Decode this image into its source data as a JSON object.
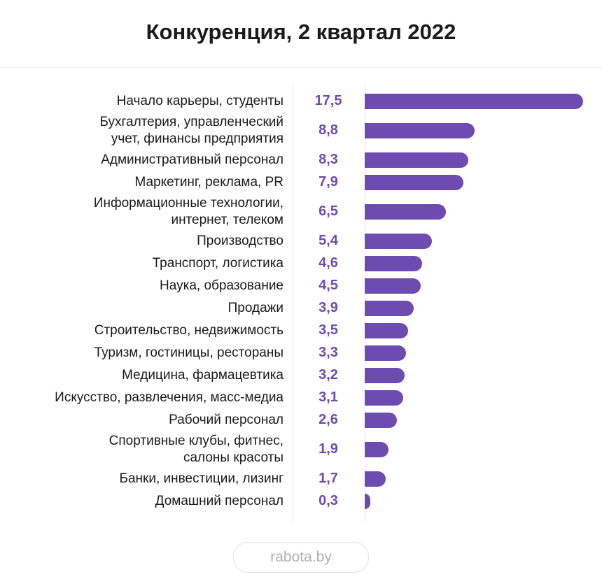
{
  "chart_data": {
    "type": "bar",
    "orientation": "horizontal",
    "title": "Конкуренция, 2 квартал 2022",
    "categories": [
      [
        "Начало карьеры, студенты"
      ],
      [
        "Бухгалтерия, управленческий",
        "учет, финансы предприятия"
      ],
      [
        "Административный персонал"
      ],
      [
        "Маркетинг, реклама, PR"
      ],
      [
        "Информационные технологии,",
        "интернет, телеком"
      ],
      [
        "Производство"
      ],
      [
        "Транспорт, логистика"
      ],
      [
        "Наука, образование"
      ],
      [
        "Продажи"
      ],
      [
        "Строительство, недвижимость"
      ],
      [
        "Туризм, гостиницы, рестораны"
      ],
      [
        "Медицина, фармацевтика"
      ],
      [
        "Искусство, развлечения, масс-медиа"
      ],
      [
        "Рабочий персонал"
      ],
      [
        "Спортивные клубы, фитнес,",
        "салоны красоты"
      ],
      [
        "Банки, инвестиции, лизинг"
      ],
      [
        "Домашний персонал"
      ]
    ],
    "values": [
      17.5,
      8.8,
      8.3,
      7.9,
      6.5,
      5.4,
      4.6,
      4.5,
      3.9,
      3.5,
      3.3,
      3.2,
      3.1,
      2.6,
      1.9,
      1.7,
      0.3
    ],
    "value_labels": [
      "17,5",
      "8,8",
      "8,3",
      "7,9",
      "6,5",
      "5,4",
      "4,6",
      "4,5",
      "3,9",
      "3,5",
      "3,3",
      "3,2",
      "3,1",
      "2,6",
      "1,9",
      "1,7",
      "0,3"
    ],
    "xlim": [
      0,
      17.5
    ],
    "bar_color": "#6e4bb1",
    "grid": false
  },
  "footer": {
    "source": "rabota.by"
  }
}
